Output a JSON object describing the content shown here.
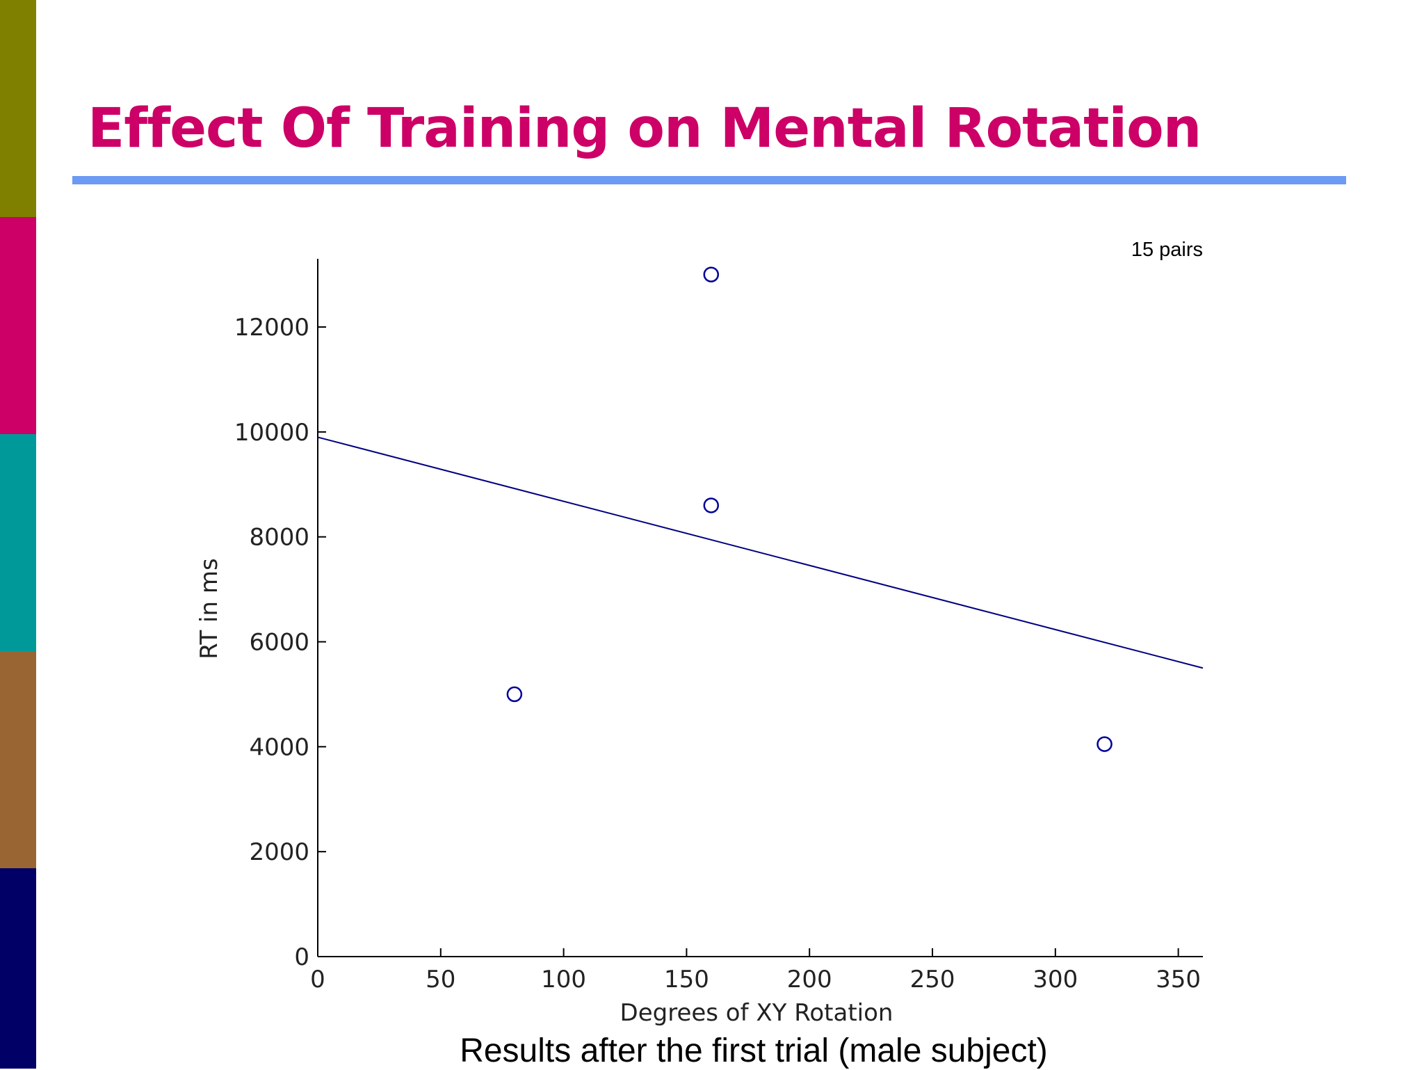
{
  "slide": {
    "title": "Effect Of Training on Mental Rotation",
    "caption": "Results after the first trial (male subject)",
    "title_color": "#cc0066",
    "rule_color": "#6b9bf2",
    "side_bands": [
      "#808000",
      "#cc0066",
      "#009999",
      "#996633",
      "#000066"
    ]
  },
  "chart_data": {
    "type": "scatter",
    "title": "",
    "annotation": "15 pairs",
    "xlabel": "Degrees of XY Rotation",
    "ylabel": "RT in ms",
    "xlim": [
      0,
      360
    ],
    "ylim": [
      0,
      13300
    ],
    "x_ticks": [
      0,
      50,
      100,
      150,
      200,
      250,
      300,
      350
    ],
    "y_ticks": [
      0,
      2000,
      4000,
      6000,
      8000,
      10000,
      12000
    ],
    "grid": false,
    "points": [
      {
        "x": 80,
        "y": 5000
      },
      {
        "x": 160,
        "y": 13000
      },
      {
        "x": 160,
        "y": 8600
      },
      {
        "x": 320,
        "y": 4050
      }
    ],
    "fit_line": {
      "x": [
        0,
        360
      ],
      "y": [
        9900,
        5500
      ]
    },
    "marker_color": "#000099",
    "line_color": "#000080"
  }
}
